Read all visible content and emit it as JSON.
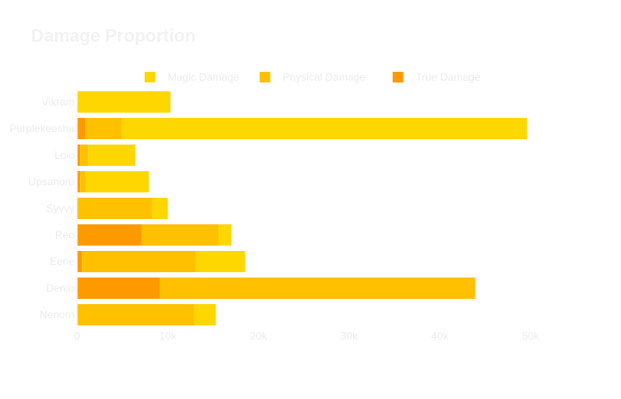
{
  "chart_data": {
    "type": "bar",
    "orientation": "horizontal",
    "stacked": true,
    "title": "Damage Proportion",
    "categories": [
      "Vikram",
      "Purplekeesha",
      "Lolo",
      "Upsanoru",
      "Syvvy",
      "Reo",
      "Eerie",
      "Demo",
      "Nenorn"
    ],
    "series": [
      {
        "name": "True Damage",
        "color": "#ff9900",
        "values": [
          0,
          900,
          300,
          300,
          100,
          7100,
          500,
          9100,
          0
        ]
      },
      {
        "name": "Physical Damage",
        "color": "#ffc000",
        "values": [
          0,
          4000,
          900,
          600,
          8200,
          8500,
          12600,
          34800,
          12900
        ]
      },
      {
        "name": "Magic Damage",
        "color": "#ffd700",
        "values": [
          10300,
          44700,
          5200,
          7000,
          1700,
          1400,
          5400,
          0,
          2400
        ]
      }
    ],
    "legend_order": [
      "Magic Damage",
      "Physical Damage",
      "True Damage"
    ],
    "x_ticks": [
      "0",
      "10k",
      "20k",
      "30k",
      "40k",
      "50k"
    ],
    "xlim": [
      0,
      50000
    ],
    "legend": "top",
    "grid": false
  }
}
